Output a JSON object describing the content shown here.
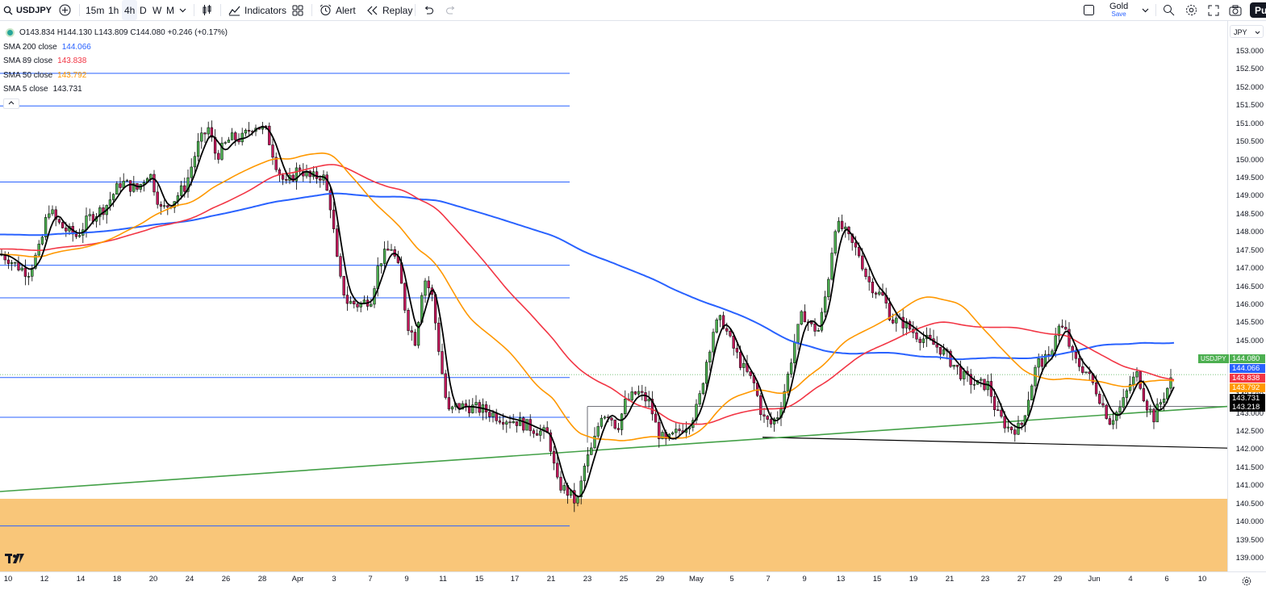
{
  "toolbar": {
    "symbol": "USDJPY",
    "intervals": [
      "15m",
      "1h",
      "4h",
      "D",
      "W",
      "M"
    ],
    "active_interval": "4h",
    "indicators_label": "Indicators",
    "alert_label": "Alert",
    "replay_label": "Replay",
    "layout_name": "Gold",
    "layout_sub": "Save",
    "publish_label": "Pu"
  },
  "legend": {
    "ohlc": "O143.834  H144.130  L143.809  C144.080  +0.246 (+0.17%)",
    "indicators": [
      {
        "name": "SMA 200 close",
        "value": "144.066",
        "color": "#2962ff"
      },
      {
        "name": "SMA 89 close",
        "value": "143.838",
        "color": "#f23645"
      },
      {
        "name": "SMA 50 close",
        "value": "143.792",
        "color": "#ff9800"
      },
      {
        "name": "SMA 5 close",
        "value": "143.731",
        "color": "#000000"
      }
    ]
  },
  "price_axis": {
    "currency": "JPY",
    "ticks": [
      "153.000",
      "152.500",
      "152.000",
      "151.500",
      "151.000",
      "150.500",
      "150.000",
      "149.500",
      "149.000",
      "148.500",
      "148.000",
      "147.500",
      "147.000",
      "146.500",
      "146.000",
      "145.500",
      "145.000",
      "144.500",
      "144.000",
      "143.500",
      "143.000",
      "142.500",
      "142.000",
      "141.500",
      "141.000",
      "140.500",
      "140.000",
      "139.500",
      "139.000"
    ],
    "tags": [
      {
        "label": "USDJPY",
        "value": "",
        "color": "#4caf50"
      },
      {
        "label": "144.080",
        "value": "144.080",
        "color": "#4caf50"
      },
      {
        "label": "144.066",
        "value": "144.066",
        "color": "#2962ff"
      },
      {
        "label": "143.838",
        "value": "143.838",
        "color": "#f23645"
      },
      {
        "label": "143.792",
        "value": "143.792",
        "color": "#ff9800"
      },
      {
        "label": "143.731",
        "value": "143.731",
        "color": "#000000"
      },
      {
        "label": "143.218",
        "value": "143.218",
        "color": "#000000"
      }
    ]
  },
  "time_axis": {
    "labels": [
      "10",
      "12",
      "14",
      "18",
      "20",
      "24",
      "26",
      "28",
      "Apr",
      "3",
      "7",
      "9",
      "11",
      "15",
      "17",
      "21",
      "23",
      "25",
      "29",
      "May",
      "5",
      "7",
      "9",
      "13",
      "15",
      "19",
      "21",
      "23",
      "27",
      "29",
      "Jun",
      "4",
      "6",
      "10"
    ]
  },
  "chart_data": {
    "type": "candlestick",
    "symbol": "USDJPY",
    "timeframe": "4h",
    "ylim": [
      138.7,
      153.3
    ],
    "close_path_approx": [
      [
        0,
        147.4
      ],
      [
        10,
        147.3
      ],
      [
        20,
        147.1
      ],
      [
        35,
        146.9
      ],
      [
        50,
        147.6
      ],
      [
        60,
        148.7
      ],
      [
        70,
        148.3
      ],
      [
        80,
        148.1
      ],
      [
        95,
        147.9
      ],
      [
        110,
        148.4
      ],
      [
        130,
        148.7
      ],
      [
        150,
        149.4
      ],
      [
        170,
        149.2
      ],
      [
        185,
        149.7
      ],
      [
        200,
        148.6
      ],
      [
        215,
        148.9
      ],
      [
        230,
        149.3
      ],
      [
        245,
        150.4
      ],
      [
        258,
        150.9
      ],
      [
        268,
        150.1
      ],
      [
        285,
        150.6
      ],
      [
        300,
        150.6
      ],
      [
        315,
        151.0
      ],
      [
        330,
        150.8
      ],
      [
        345,
        149.7
      ],
      [
        355,
        149.3
      ],
      [
        370,
        149.8
      ],
      [
        385,
        149.5
      ],
      [
        400,
        149.6
      ],
      [
        410,
        148.7
      ],
      [
        420,
        146.8
      ],
      [
        430,
        146.1
      ],
      [
        445,
        146.0
      ],
      [
        460,
        146.2
      ],
      [
        470,
        147.2
      ],
      [
        485,
        147.6
      ],
      [
        495,
        146.9
      ],
      [
        505,
        145.5
      ],
      [
        515,
        145.0
      ],
      [
        525,
        146.8
      ],
      [
        535,
        146.3
      ],
      [
        545,
        144.6
      ],
      [
        555,
        143.0
      ],
      [
        565,
        143.2
      ],
      [
        580,
        143.2
      ],
      [
        600,
        143.1
      ],
      [
        620,
        142.9
      ],
      [
        640,
        142.8
      ],
      [
        660,
        142.6
      ],
      [
        680,
        142.4
      ],
      [
        690,
        141.1
      ],
      [
        705,
        140.8
      ],
      [
        715,
        140.5
      ],
      [
        725,
        141.6
      ],
      [
        735,
        142.1
      ],
      [
        745,
        143.0
      ],
      [
        755,
        143.0
      ],
      [
        765,
        142.6
      ],
      [
        775,
        143.3
      ],
      [
        790,
        143.6
      ],
      [
        805,
        143.3
      ],
      [
        815,
        142.5
      ],
      [
        825,
        142.2
      ],
      [
        840,
        142.5
      ],
      [
        855,
        142.8
      ],
      [
        865,
        143.2
      ],
      [
        875,
        144.4
      ],
      [
        885,
        145.4
      ],
      [
        895,
        145.6
      ],
      [
        905,
        145.0
      ],
      [
        920,
        144.3
      ],
      [
        935,
        143.8
      ],
      [
        945,
        142.9
      ],
      [
        955,
        142.7
      ],
      [
        965,
        143.0
      ],
      [
        975,
        143.9
      ],
      [
        985,
        145.0
      ],
      [
        995,
        145.8
      ],
      [
        1005,
        145.4
      ],
      [
        1015,
        145.3
      ],
      [
        1025,
        146.5
      ],
      [
        1035,
        148.2
      ],
      [
        1045,
        148.1
      ],
      [
        1055,
        147.7
      ],
      [
        1065,
        147.4
      ],
      [
        1075,
        146.7
      ],
      [
        1085,
        146.4
      ],
      [
        1095,
        146.2
      ],
      [
        1105,
        145.6
      ],
      [
        1120,
        145.5
      ],
      [
        1135,
        145.2
      ],
      [
        1150,
        145.0
      ],
      [
        1165,
        144.8
      ],
      [
        1180,
        144.4
      ],
      [
        1195,
        144.0
      ],
      [
        1210,
        143.8
      ],
      [
        1225,
        143.8
      ],
      [
        1235,
        143.0
      ],
      [
        1250,
        142.6
      ],
      [
        1265,
        142.6
      ],
      [
        1275,
        143.5
      ],
      [
        1285,
        144.4
      ],
      [
        1300,
        144.5
      ],
      [
        1310,
        145.4
      ],
      [
        1320,
        145.3
      ],
      [
        1330,
        144.5
      ],
      [
        1345,
        144.2
      ],
      [
        1360,
        143.6
      ],
      [
        1375,
        142.8
      ],
      [
        1390,
        143.2
      ],
      [
        1400,
        143.8
      ],
      [
        1410,
        144.1
      ],
      [
        1420,
        143.3
      ],
      [
        1430,
        142.9
      ],
      [
        1440,
        143.4
      ],
      [
        1455,
        144.08
      ]
    ]
  },
  "drawings": {
    "horizontal_levels": [
      152.4,
      151.5,
      149.4,
      147.1,
      146.2,
      144.0,
      142.9,
      139.9
    ],
    "demand_zone": [
      138.7,
      140.65
    ],
    "channel_level": 143.2
  }
}
